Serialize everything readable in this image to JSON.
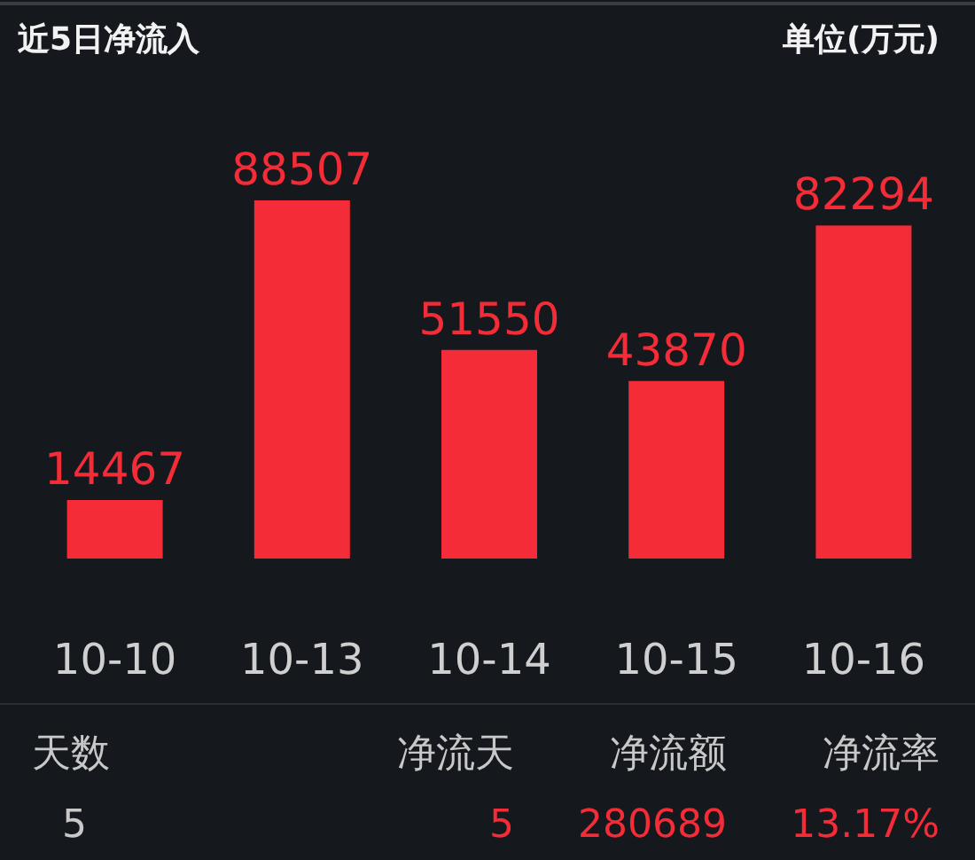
{
  "chart_data": {
    "type": "bar",
    "title": "近5日净流入",
    "subtitle": "单位(万元)",
    "categories": [
      "10-10",
      "10-13",
      "10-14",
      "10-15",
      "10-16"
    ],
    "values": [
      14467,
      88507,
      51550,
      43870,
      82294
    ],
    "color": "#f42c37",
    "data_labels": true,
    "annotations": [
      "天数",
      "5",
      "净流天",
      "5",
      "净流额",
      "280689",
      "净流率",
      "13.17%"
    ]
  }
}
